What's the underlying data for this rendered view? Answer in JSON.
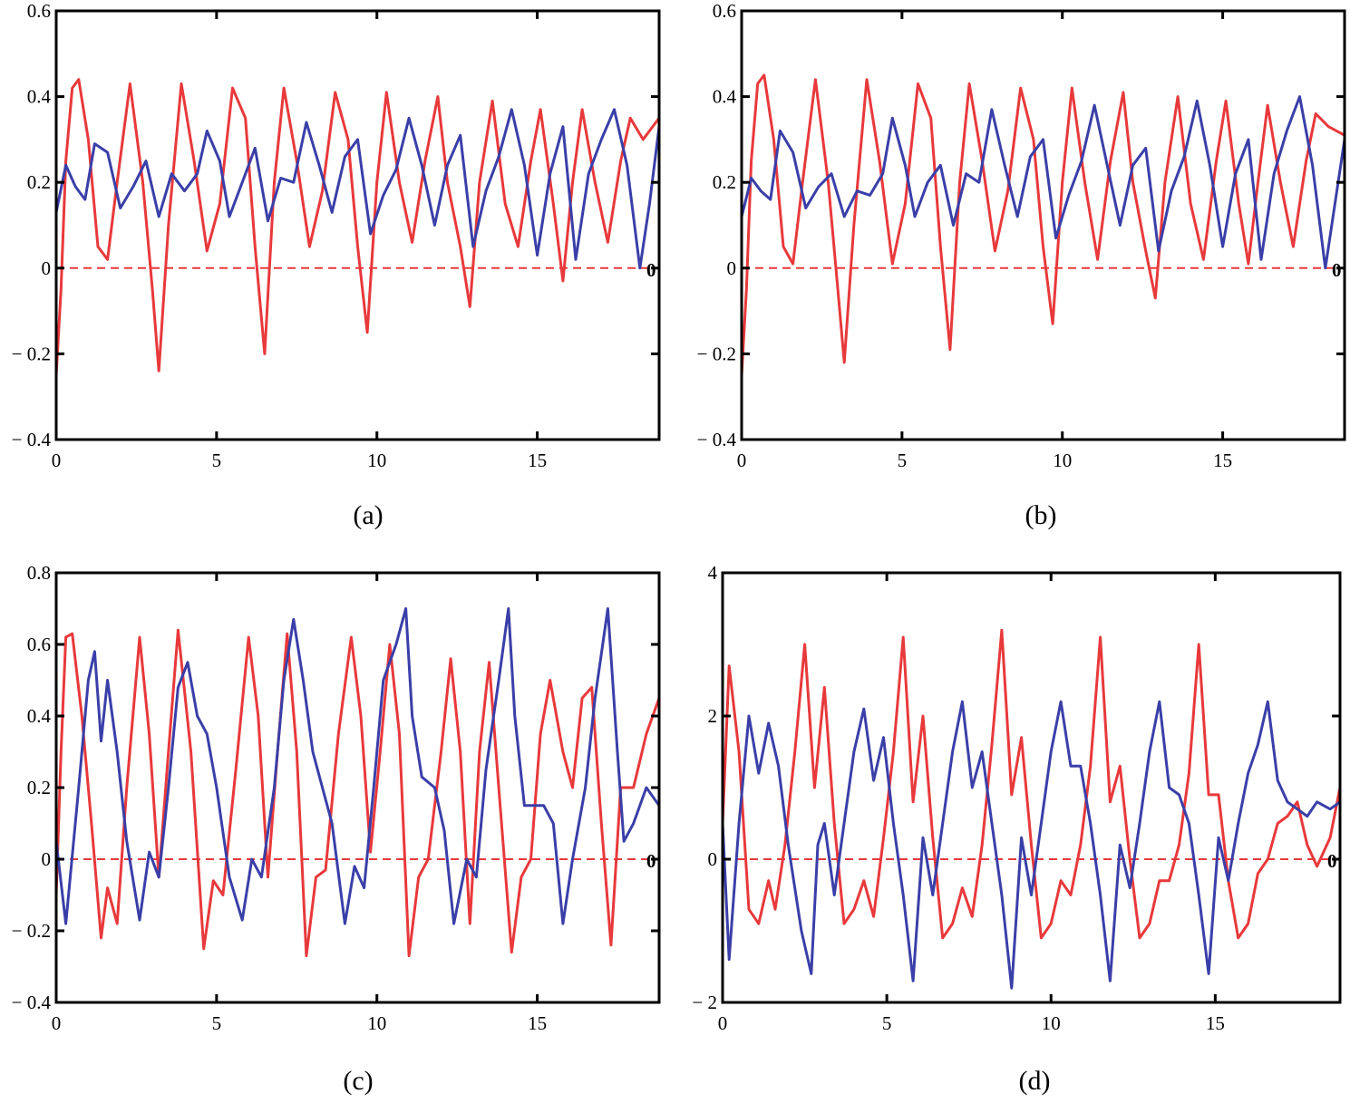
{
  "colors": {
    "series_red": "#e8393b",
    "series_blue": "#3a3fa8",
    "axis": "#000000"
  },
  "chart_data": [
    {
      "type": "line",
      "caption": "(a)",
      "xlim": [
        0,
        18.8
      ],
      "ylim": [
        -0.4,
        0.6
      ],
      "xticks": [
        0,
        5,
        10,
        15
      ],
      "yticks": [
        -0.4,
        -0.2,
        0,
        0.2,
        0.4,
        0.6
      ],
      "xtick_labels": [
        "0",
        "5",
        "10",
        "15"
      ],
      "ytick_labels": [
        "− 0.4",
        "− 0.2",
        "0",
        "0.2",
        "0.4",
        "0.6"
      ],
      "right_zero_label": "0",
      "reference_line_y": 0,
      "series": [
        {
          "color": "red",
          "x": [
            0,
            0.15,
            0.3,
            0.5,
            0.7,
            1.0,
            1.3,
            1.6,
            1.9,
            2.3,
            2.7,
            3.0,
            3.2,
            3.5,
            3.9,
            4.3,
            4.7,
            5.1,
            5.5,
            5.9,
            6.2,
            6.5,
            6.8,
            7.1,
            7.5,
            7.9,
            8.3,
            8.7,
            9.1,
            9.4,
            9.7,
            10.0,
            10.3,
            10.7,
            11.1,
            11.5,
            11.9,
            12.2,
            12.6,
            12.9,
            13.2,
            13.6,
            14.0,
            14.4,
            14.8,
            15.1,
            15.5,
            15.8,
            16.1,
            16.4,
            16.8,
            17.2,
            17.6,
            17.9,
            18.3,
            18.8
          ],
          "y": [
            -0.25,
            -0.05,
            0.25,
            0.42,
            0.44,
            0.3,
            0.05,
            0.02,
            0.2,
            0.43,
            0.2,
            -0.05,
            -0.24,
            0.1,
            0.43,
            0.25,
            0.04,
            0.15,
            0.42,
            0.35,
            0.05,
            -0.2,
            0.2,
            0.42,
            0.25,
            0.05,
            0.18,
            0.41,
            0.3,
            0.05,
            -0.15,
            0.2,
            0.41,
            0.2,
            0.06,
            0.25,
            0.4,
            0.2,
            0.05,
            -0.09,
            0.2,
            0.39,
            0.15,
            0.05,
            0.25,
            0.37,
            0.15,
            -0.03,
            0.2,
            0.37,
            0.2,
            0.06,
            0.25,
            0.35,
            0.3,
            0.35
          ]
        },
        {
          "color": "blue",
          "x": [
            0,
            0.3,
            0.6,
            0.9,
            1.2,
            1.6,
            2.0,
            2.4,
            2.8,
            3.2,
            3.6,
            4.0,
            4.4,
            4.7,
            5.1,
            5.4,
            5.8,
            6.2,
            6.6,
            7.0,
            7.4,
            7.8,
            8.2,
            8.6,
            9.0,
            9.4,
            9.8,
            10.2,
            10.6,
            11.0,
            11.4,
            11.8,
            12.2,
            12.6,
            13.0,
            13.4,
            13.8,
            14.2,
            14.6,
            15.0,
            15.4,
            15.8,
            16.2,
            16.6,
            17.0,
            17.4,
            17.8,
            18.2,
            18.5,
            18.8
          ],
          "y": [
            0.13,
            0.24,
            0.19,
            0.16,
            0.29,
            0.27,
            0.14,
            0.19,
            0.25,
            0.12,
            0.22,
            0.18,
            0.22,
            0.32,
            0.25,
            0.12,
            0.2,
            0.28,
            0.11,
            0.21,
            0.2,
            0.34,
            0.24,
            0.13,
            0.26,
            0.3,
            0.08,
            0.17,
            0.23,
            0.35,
            0.24,
            0.1,
            0.24,
            0.31,
            0.05,
            0.18,
            0.26,
            0.37,
            0.24,
            0.03,
            0.22,
            0.33,
            0.02,
            0.22,
            0.3,
            0.37,
            0.24,
            0.0,
            0.15,
            0.33
          ]
        }
      ]
    },
    {
      "type": "line",
      "caption": "(b)",
      "xlim": [
        0,
        18.8
      ],
      "ylim": [
        -0.4,
        0.6
      ],
      "xticks": [
        0,
        5,
        10,
        15
      ],
      "yticks": [
        -0.4,
        -0.2,
        0,
        0.2,
        0.4,
        0.6
      ],
      "xtick_labels": [
        "0",
        "5",
        "10",
        "15"
      ],
      "ytick_labels": [
        "− 0.4",
        "− 0.2",
        "0",
        "0.2",
        "0.4",
        "0.6"
      ],
      "right_zero_label": "0",
      "reference_line_y": 0,
      "series": [
        {
          "color": "red",
          "x": [
            0,
            0.15,
            0.3,
            0.5,
            0.7,
            1.0,
            1.3,
            1.6,
            1.9,
            2.3,
            2.7,
            3.0,
            3.2,
            3.5,
            3.9,
            4.3,
            4.7,
            5.1,
            5.5,
            5.9,
            6.2,
            6.5,
            6.8,
            7.1,
            7.5,
            7.9,
            8.3,
            8.7,
            9.1,
            9.4,
            9.7,
            10.0,
            10.3,
            10.7,
            11.1,
            11.5,
            11.9,
            12.2,
            12.6,
            12.9,
            13.2,
            13.6,
            14.0,
            14.4,
            14.8,
            15.1,
            15.5,
            15.8,
            16.1,
            16.4,
            16.8,
            17.2,
            17.6,
            17.9,
            18.3,
            18.8
          ],
          "y": [
            -0.25,
            -0.05,
            0.25,
            0.43,
            0.45,
            0.3,
            0.05,
            0.01,
            0.2,
            0.44,
            0.2,
            -0.05,
            -0.22,
            0.1,
            0.44,
            0.25,
            0.01,
            0.15,
            0.43,
            0.35,
            0.05,
            -0.19,
            0.2,
            0.43,
            0.25,
            0.04,
            0.18,
            0.42,
            0.3,
            0.05,
            -0.13,
            0.2,
            0.42,
            0.2,
            0.02,
            0.25,
            0.41,
            0.2,
            0.04,
            -0.07,
            0.2,
            0.4,
            0.15,
            0.02,
            0.25,
            0.39,
            0.15,
            0.01,
            0.2,
            0.38,
            0.2,
            0.05,
            0.25,
            0.36,
            0.33,
            0.31
          ]
        },
        {
          "color": "blue",
          "x": [
            0,
            0.3,
            0.6,
            0.9,
            1.2,
            1.6,
            2.0,
            2.4,
            2.8,
            3.2,
            3.6,
            4.0,
            4.4,
            4.7,
            5.1,
            5.4,
            5.8,
            6.2,
            6.6,
            7.0,
            7.4,
            7.8,
            8.2,
            8.6,
            9.0,
            9.4,
            9.8,
            10.2,
            10.6,
            11.0,
            11.4,
            11.8,
            12.2,
            12.6,
            13.0,
            13.4,
            13.8,
            14.2,
            14.6,
            15.0,
            15.4,
            15.8,
            16.2,
            16.6,
            17.0,
            17.4,
            17.8,
            18.2,
            18.5,
            18.8
          ],
          "y": [
            0.12,
            0.21,
            0.18,
            0.16,
            0.32,
            0.27,
            0.14,
            0.19,
            0.22,
            0.12,
            0.18,
            0.17,
            0.22,
            0.35,
            0.24,
            0.12,
            0.2,
            0.24,
            0.1,
            0.22,
            0.2,
            0.37,
            0.24,
            0.12,
            0.26,
            0.3,
            0.07,
            0.17,
            0.25,
            0.38,
            0.24,
            0.1,
            0.24,
            0.28,
            0.04,
            0.18,
            0.26,
            0.39,
            0.24,
            0.05,
            0.22,
            0.3,
            0.02,
            0.22,
            0.32,
            0.4,
            0.24,
            0.0,
            0.15,
            0.3
          ]
        }
      ]
    },
    {
      "type": "line",
      "caption": "(c)",
      "xlim": [
        0,
        18.8
      ],
      "ylim": [
        -0.4,
        0.8
      ],
      "xticks": [
        0,
        5,
        10,
        15
      ],
      "yticks": [
        -0.4,
        -0.2,
        0,
        0.2,
        0.4,
        0.6,
        0.8
      ],
      "xtick_labels": [
        "0",
        "5",
        "10",
        "15"
      ],
      "ytick_labels": [
        "− 0.4",
        "− 0.2",
        "0",
        "0.2",
        "0.4",
        "0.6",
        "0.8"
      ],
      "right_zero_label": "0",
      "reference_line_y": 0,
      "series": [
        {
          "color": "red",
          "x": [
            0,
            0.15,
            0.3,
            0.5,
            0.8,
            1.1,
            1.4,
            1.6,
            1.9,
            2.2,
            2.6,
            2.9,
            3.2,
            3.5,
            3.8,
            4.2,
            4.6,
            4.9,
            5.2,
            5.6,
            6.0,
            6.3,
            6.6,
            6.9,
            7.2,
            7.5,
            7.8,
            8.1,
            8.4,
            8.8,
            9.2,
            9.5,
            9.8,
            10.1,
            10.4,
            10.7,
            11.0,
            11.3,
            11.6,
            12.0,
            12.3,
            12.6,
            12.9,
            13.2,
            13.5,
            13.8,
            14.2,
            14.5,
            14.8,
            15.1,
            15.4,
            15.8,
            16.1,
            16.4,
            16.7,
            17.0,
            17.3,
            17.6,
            18.0,
            18.4,
            18.8
          ],
          "y": [
            -0.1,
            0.3,
            0.62,
            0.63,
            0.4,
            0.1,
            -0.22,
            -0.08,
            -0.18,
            0.2,
            0.62,
            0.35,
            -0.05,
            0.3,
            0.64,
            0.3,
            -0.25,
            -0.06,
            -0.1,
            0.25,
            0.62,
            0.4,
            -0.05,
            0.3,
            0.63,
            0.3,
            -0.27,
            -0.05,
            -0.03,
            0.35,
            0.62,
            0.4,
            0.02,
            0.3,
            0.6,
            0.35,
            -0.27,
            -0.05,
            0.0,
            0.3,
            0.56,
            0.3,
            -0.18,
            0.3,
            0.55,
            0.2,
            -0.26,
            -0.05,
            0.0,
            0.35,
            0.5,
            0.3,
            0.2,
            0.45,
            0.48,
            0.1,
            -0.24,
            0.2,
            0.2,
            0.35,
            0.45
          ]
        },
        {
          "color": "blue",
          "x": [
            0,
            0.3,
            0.7,
            1.0,
            1.2,
            1.4,
            1.6,
            1.9,
            2.2,
            2.6,
            2.9,
            3.2,
            3.5,
            3.8,
            4.1,
            4.4,
            4.7,
            5.0,
            5.4,
            5.8,
            6.1,
            6.4,
            6.8,
            7.1,
            7.4,
            7.7,
            8.0,
            8.3,
            8.6,
            9.0,
            9.3,
            9.6,
            9.9,
            10.2,
            10.6,
            10.9,
            11.1,
            11.4,
            11.8,
            12.1,
            12.4,
            12.8,
            13.1,
            13.4,
            13.8,
            14.1,
            14.3,
            14.6,
            14.9,
            15.2,
            15.5,
            15.8,
            16.1,
            16.5,
            16.8,
            17.2,
            17.5,
            17.7,
            18.0,
            18.4,
            18.8
          ],
          "y": [
            0.05,
            -0.18,
            0.2,
            0.5,
            0.58,
            0.33,
            0.5,
            0.3,
            0.05,
            -0.17,
            0.02,
            -0.05,
            0.2,
            0.48,
            0.55,
            0.4,
            0.35,
            0.2,
            -0.05,
            -0.17,
            0.0,
            -0.05,
            0.2,
            0.5,
            0.67,
            0.5,
            0.3,
            0.2,
            0.1,
            -0.18,
            -0.02,
            -0.08,
            0.2,
            0.5,
            0.6,
            0.7,
            0.4,
            0.23,
            0.2,
            0.08,
            -0.18,
            0.0,
            -0.05,
            0.25,
            0.5,
            0.7,
            0.4,
            0.15,
            0.15,
            0.15,
            0.1,
            -0.18,
            0.0,
            0.2,
            0.45,
            0.7,
            0.3,
            0.05,
            0.1,
            0.2,
            0.15
          ]
        }
      ]
    },
    {
      "type": "line",
      "caption": "(d)",
      "xlim": [
        0,
        18.8
      ],
      "ylim": [
        -2,
        4
      ],
      "xticks": [
        0,
        5,
        10,
        15
      ],
      "yticks": [
        -2,
        0,
        2,
        4
      ],
      "xtick_labels": [
        "0",
        "5",
        "10",
        "15"
      ],
      "ytick_labels": [
        "− 2",
        "0",
        "2",
        "4"
      ],
      "right_zero_label": "0",
      "reference_line_y": 0,
      "series": [
        {
          "color": "red",
          "x": [
            0,
            0.2,
            0.5,
            0.8,
            1.1,
            1.4,
            1.6,
            1.9,
            2.2,
            2.5,
            2.8,
            3.1,
            3.4,
            3.7,
            4.0,
            4.3,
            4.6,
            4.9,
            5.2,
            5.5,
            5.8,
            6.1,
            6.4,
            6.7,
            7.0,
            7.3,
            7.6,
            7.9,
            8.2,
            8.5,
            8.8,
            9.1,
            9.4,
            9.7,
            10.0,
            10.3,
            10.6,
            10.9,
            11.2,
            11.5,
            11.8,
            12.1,
            12.4,
            12.7,
            13.0,
            13.3,
            13.6,
            13.9,
            14.2,
            14.5,
            14.8,
            15.1,
            15.4,
            15.7,
            16.0,
            16.3,
            16.6,
            16.9,
            17.2,
            17.5,
            17.8,
            18.1,
            18.5,
            18.8
          ],
          "y": [
            0.5,
            2.7,
            1.5,
            -0.7,
            -0.9,
            -0.3,
            -0.7,
            0.2,
            1.5,
            3.0,
            1.0,
            2.4,
            0.5,
            -0.9,
            -0.7,
            -0.3,
            -0.8,
            0.3,
            1.5,
            3.1,
            0.8,
            2.0,
            0.3,
            -1.1,
            -0.9,
            -0.4,
            -0.8,
            0.2,
            1.6,
            3.2,
            0.9,
            1.7,
            0.2,
            -1.1,
            -0.9,
            -0.3,
            -0.5,
            0.2,
            1.3,
            3.1,
            0.8,
            1.3,
            0.0,
            -1.1,
            -0.9,
            -0.3,
            -0.3,
            0.2,
            1.2,
            3.0,
            0.9,
            0.9,
            -0.3,
            -1.1,
            -0.9,
            -0.2,
            0.0,
            0.5,
            0.6,
            0.8,
            0.2,
            -0.1,
            0.3,
            1.0
          ]
        },
        {
          "color": "blue",
          "x": [
            0,
            0.2,
            0.5,
            0.8,
            1.1,
            1.4,
            1.7,
            2.0,
            2.4,
            2.7,
            2.9,
            3.1,
            3.4,
            3.7,
            4.0,
            4.3,
            4.6,
            4.9,
            5.2,
            5.5,
            5.8,
            6.1,
            6.4,
            6.7,
            7.0,
            7.3,
            7.6,
            7.9,
            8.2,
            8.5,
            8.8,
            9.1,
            9.4,
            9.7,
            10.0,
            10.3,
            10.6,
            10.9,
            11.2,
            11.5,
            11.8,
            12.1,
            12.4,
            12.7,
            13.0,
            13.3,
            13.6,
            13.9,
            14.2,
            14.5,
            14.8,
            15.1,
            15.4,
            15.7,
            16.0,
            16.3,
            16.6,
            16.9,
            17.2,
            17.5,
            17.8,
            18.1,
            18.5,
            18.8
          ],
          "y": [
            0.5,
            -1.4,
            0.5,
            2.0,
            1.2,
            1.9,
            1.3,
            0.2,
            -1.0,
            -1.6,
            0.2,
            0.5,
            -0.5,
            0.5,
            1.5,
            2.1,
            1.1,
            1.7,
            0.5,
            -0.5,
            -1.7,
            0.3,
            -0.5,
            0.5,
            1.5,
            2.2,
            1.0,
            1.5,
            0.5,
            -0.5,
            -1.8,
            0.3,
            -0.5,
            0.5,
            1.5,
            2.2,
            1.3,
            1.3,
            0.5,
            -0.5,
            -1.7,
            0.2,
            -0.4,
            0.5,
            1.5,
            2.2,
            1.0,
            0.9,
            0.5,
            -0.5,
            -1.6,
            0.3,
            -0.3,
            0.5,
            1.2,
            1.6,
            2.2,
            1.1,
            0.8,
            0.7,
            0.6,
            0.8,
            0.7,
            0.8
          ]
        }
      ]
    }
  ]
}
